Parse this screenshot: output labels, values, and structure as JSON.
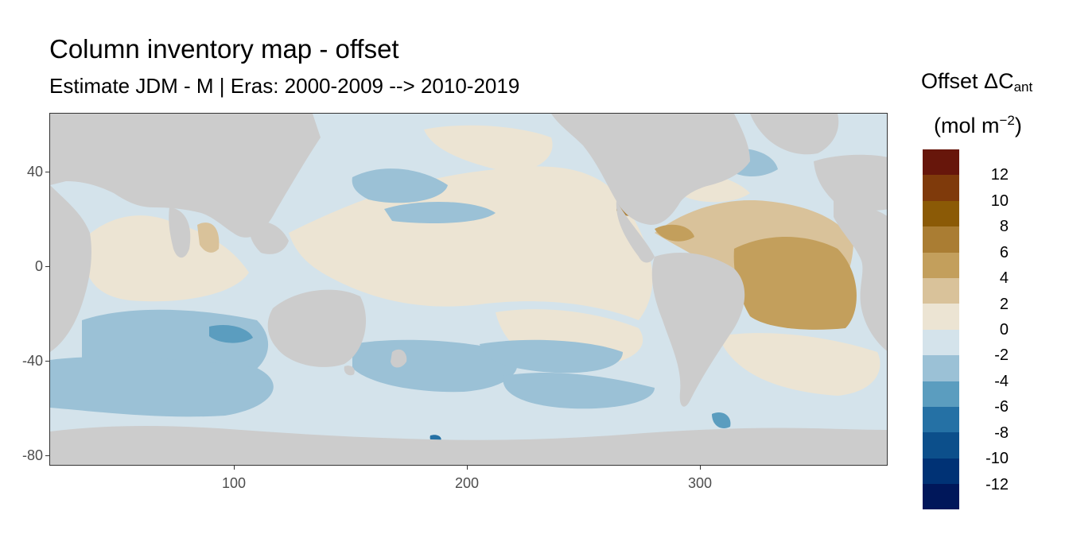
{
  "title": "Column inventory map - offset",
  "subtitle": "Estimate JDM - M | Eras: 2000-2009 --> 2010-2019",
  "legend": {
    "title_main": "Offset ΔC",
    "title_sub": "ant",
    "unit_main": "(mol m",
    "unit_sup": "−2",
    "unit_close": ")",
    "bins": [
      {
        "color": "#67160b"
      },
      {
        "color": "#7f3a0b"
      },
      {
        "color": "#8b5a06"
      },
      {
        "color": "#aa7d33"
      },
      {
        "color": "#c39f5c"
      },
      {
        "color": "#d9c29a"
      },
      {
        "color": "#ece4d3"
      },
      {
        "color": "#d4e3eb"
      },
      {
        "color": "#9bc1d6"
      },
      {
        "color": "#5b9dbf"
      },
      {
        "color": "#2571a5"
      },
      {
        "color": "#0c4f8b"
      },
      {
        "color": "#003275"
      },
      {
        "color": "#00175a"
      }
    ],
    "labels": [
      "12",
      "10",
      "8",
      "6",
      "4",
      "2",
      "0",
      "-2",
      "-4",
      "-6",
      "-8",
      "-10",
      "-12"
    ]
  },
  "axes": {
    "x_ticks": [
      "100",
      "200",
      "300"
    ],
    "y_ticks": [
      "40",
      "0",
      "-40",
      "-80"
    ]
  },
  "colors": {
    "land": "#cccccc",
    "border": "#333333"
  }
}
